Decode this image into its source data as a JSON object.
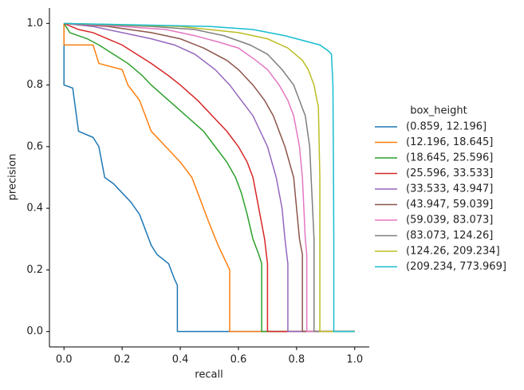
{
  "chart_data": {
    "type": "line",
    "xlabel": "recall",
    "ylabel": "precision",
    "legend_title": "box_height",
    "legend_position": "right",
    "xlim": [
      -0.05,
      1.05
    ],
    "ylim": [
      -0.05,
      1.05
    ],
    "xticks": [
      {
        "value": 0,
        "label": "0.0"
      },
      {
        "value": 0.2,
        "label": "0.2"
      },
      {
        "value": 0.4,
        "label": "0.4"
      },
      {
        "value": 0.6,
        "label": "0.6"
      },
      {
        "value": 0.8,
        "label": "0.8"
      },
      {
        "value": 1,
        "label": "1.0"
      }
    ],
    "yticks": [
      {
        "value": 0,
        "label": "0.0"
      },
      {
        "value": 0.2,
        "label": "0.2"
      },
      {
        "value": 0.4,
        "label": "0.4"
      },
      {
        "value": 0.6,
        "label": "0.6"
      },
      {
        "value": 0.8,
        "label": "0.8"
      },
      {
        "value": 1,
        "label": "1.0"
      }
    ],
    "series": [
      {
        "name": "(0.859, 12.196]",
        "color": "#1f77b4",
        "x": [
          0,
          0,
          0.03,
          0.04,
          0.05,
          0.1,
          0.12,
          0.13,
          0.14,
          0.17,
          0.2,
          0.23,
          0.26,
          0.28,
          0.3,
          0.32,
          0.36,
          0.38,
          0.39,
          0.39,
          1.0
        ],
        "values": [
          1.0,
          0.8,
          0.79,
          0.72,
          0.65,
          0.63,
          0.6,
          0.55,
          0.5,
          0.48,
          0.45,
          0.42,
          0.38,
          0.33,
          0.28,
          0.25,
          0.22,
          0.17,
          0.15,
          0,
          0
        ]
      },
      {
        "name": "(12.196, 18.645]",
        "color": "#ff7f0e",
        "x": [
          0,
          0,
          0.1,
          0.11,
          0.12,
          0.2,
          0.22,
          0.26,
          0.28,
          0.3,
          0.35,
          0.4,
          0.44,
          0.46,
          0.48,
          0.5,
          0.53,
          0.56,
          0.57,
          0.57,
          1.0
        ],
        "values": [
          1.0,
          0.93,
          0.93,
          0.9,
          0.87,
          0.85,
          0.8,
          0.75,
          0.7,
          0.65,
          0.6,
          0.55,
          0.5,
          0.45,
          0.4,
          0.35,
          0.28,
          0.22,
          0.2,
          0,
          0
        ]
      },
      {
        "name": "(18.645, 25.596]",
        "color": "#2ca02c",
        "x": [
          0,
          0.02,
          0.08,
          0.12,
          0.17,
          0.22,
          0.27,
          0.3,
          0.36,
          0.42,
          0.48,
          0.52,
          0.56,
          0.59,
          0.61,
          0.63,
          0.65,
          0.67,
          0.68,
          0.68,
          1.0
        ],
        "values": [
          1.0,
          0.97,
          0.95,
          0.93,
          0.9,
          0.87,
          0.83,
          0.8,
          0.75,
          0.7,
          0.65,
          0.6,
          0.55,
          0.5,
          0.45,
          0.38,
          0.3,
          0.25,
          0.22,
          0,
          0
        ]
      },
      {
        "name": "(25.596, 33.533]",
        "color": "#d62728",
        "x": [
          0,
          0.05,
          0.1,
          0.15,
          0.2,
          0.25,
          0.3,
          0.36,
          0.4,
          0.46,
          0.51,
          0.56,
          0.6,
          0.63,
          0.65,
          0.66,
          0.67,
          0.69,
          0.7,
          0.7,
          1.0
        ],
        "values": [
          1.0,
          0.98,
          0.97,
          0.95,
          0.93,
          0.9,
          0.87,
          0.83,
          0.8,
          0.75,
          0.7,
          0.65,
          0.6,
          0.55,
          0.5,
          0.45,
          0.4,
          0.3,
          0.22,
          0,
          0
        ]
      },
      {
        "name": "(33.533, 43.947]",
        "color": "#9467bd",
        "x": [
          0,
          0.1,
          0.2,
          0.3,
          0.38,
          0.45,
          0.52,
          0.57,
          0.61,
          0.65,
          0.7,
          0.73,
          0.75,
          0.76,
          0.77,
          0.77,
          1.0
        ],
        "values": [
          1.0,
          0.99,
          0.97,
          0.95,
          0.93,
          0.9,
          0.85,
          0.8,
          0.75,
          0.7,
          0.6,
          0.5,
          0.4,
          0.3,
          0.22,
          0,
          0
        ]
      },
      {
        "name": "(43.947, 59.039]",
        "color": "#8c564b",
        "x": [
          0,
          0.15,
          0.3,
          0.4,
          0.48,
          0.56,
          0.6,
          0.65,
          0.69,
          0.72,
          0.76,
          0.79,
          0.8,
          0.81,
          0.82,
          0.82,
          1.0
        ],
        "values": [
          1.0,
          0.99,
          0.97,
          0.95,
          0.92,
          0.88,
          0.85,
          0.8,
          0.75,
          0.7,
          0.6,
          0.5,
          0.4,
          0.3,
          0.25,
          0,
          0
        ]
      },
      {
        "name": "(59.039, 83.073]",
        "color": "#e377c2",
        "x": [
          0,
          0.2,
          0.35,
          0.45,
          0.53,
          0.6,
          0.66,
          0.7,
          0.74,
          0.77,
          0.79,
          0.81,
          0.82,
          0.825,
          0.83,
          0.835,
          0.835,
          1.0
        ],
        "values": [
          1.0,
          0.99,
          0.98,
          0.96,
          0.94,
          0.92,
          0.88,
          0.85,
          0.8,
          0.75,
          0.7,
          0.6,
          0.5,
          0.4,
          0.3,
          0.25,
          0,
          0
        ]
      },
      {
        "name": "(83.073, 124.26]",
        "color": "#7f7f7f",
        "x": [
          0,
          0.3,
          0.45,
          0.55,
          0.64,
          0.7,
          0.75,
          0.79,
          0.81,
          0.83,
          0.845,
          0.85,
          0.855,
          0.86,
          0.86,
          1.0
        ],
        "values": [
          1.0,
          0.99,
          0.98,
          0.96,
          0.93,
          0.9,
          0.85,
          0.8,
          0.75,
          0.7,
          0.6,
          0.5,
          0.4,
          0.3,
          0,
          0
        ]
      },
      {
        "name": "(124.26, 209.234]",
        "color": "#bcbd22",
        "x": [
          0,
          0.4,
          0.6,
          0.7,
          0.77,
          0.82,
          0.84,
          0.86,
          0.87,
          0.875,
          0.88,
          0.88,
          0.88,
          1.0
        ],
        "values": [
          1.0,
          0.99,
          0.97,
          0.95,
          0.92,
          0.88,
          0.85,
          0.8,
          0.75,
          0.73,
          0.5,
          0.3,
          0,
          0
        ]
      },
      {
        "name": "(209.234, 773.969]",
        "color": "#17becf",
        "x": [
          0,
          0.5,
          0.65,
          0.76,
          0.8,
          0.88,
          0.91,
          0.92,
          0.925,
          0.927,
          0.928,
          0.928,
          1.0
        ],
        "values": [
          1.0,
          0.99,
          0.98,
          0.96,
          0.95,
          0.93,
          0.91,
          0.9,
          0.8,
          0.5,
          0.3,
          0,
          0
        ]
      }
    ]
  }
}
